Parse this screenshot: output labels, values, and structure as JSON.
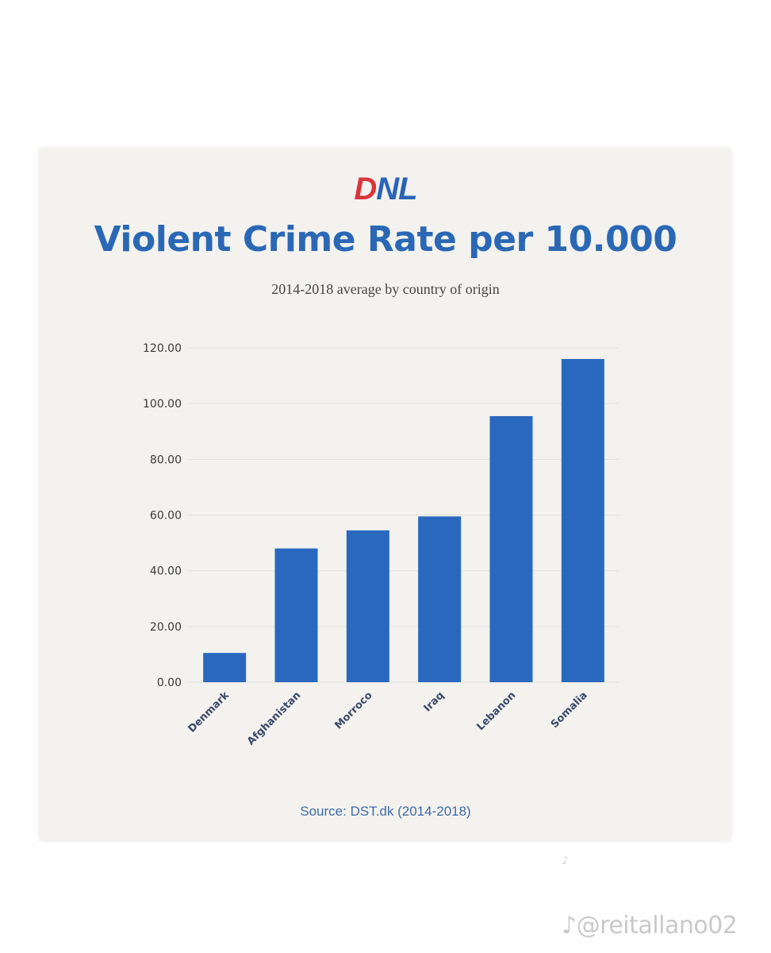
{
  "header": {
    "logo_d": "D",
    "logo_rest": "NL",
    "title": "Violent Crime Rate per 10.000",
    "subtitle": "2014-2018 average by country of origin"
  },
  "footer": {
    "source": "Source:  DST.dk  (2014-2018)",
    "watermark": "@reitallano02"
  },
  "colors": {
    "bar": "#2a68c0",
    "title": "#2a68b5",
    "logo_red": "#d8343a",
    "background": "#f3f2ef"
  },
  "chart_data": {
    "type": "bar",
    "categories": [
      "Denmark",
      "Afghanistan",
      "Morroco",
      "Iraq",
      "Lebanon",
      "Somalia"
    ],
    "values": [
      10.5,
      48,
      54.5,
      59.5,
      95.5,
      116
    ],
    "title": "Violent Crime Rate per 10.000",
    "subtitle": "2014-2018 average by country of origin",
    "xlabel": "",
    "ylabel": "",
    "ylim": [
      0,
      120
    ],
    "yticks": [
      "0.00",
      "20.00",
      "40.00",
      "60.00",
      "80.00",
      "100.00",
      "120.00"
    ],
    "grid": true,
    "legend": "none"
  }
}
